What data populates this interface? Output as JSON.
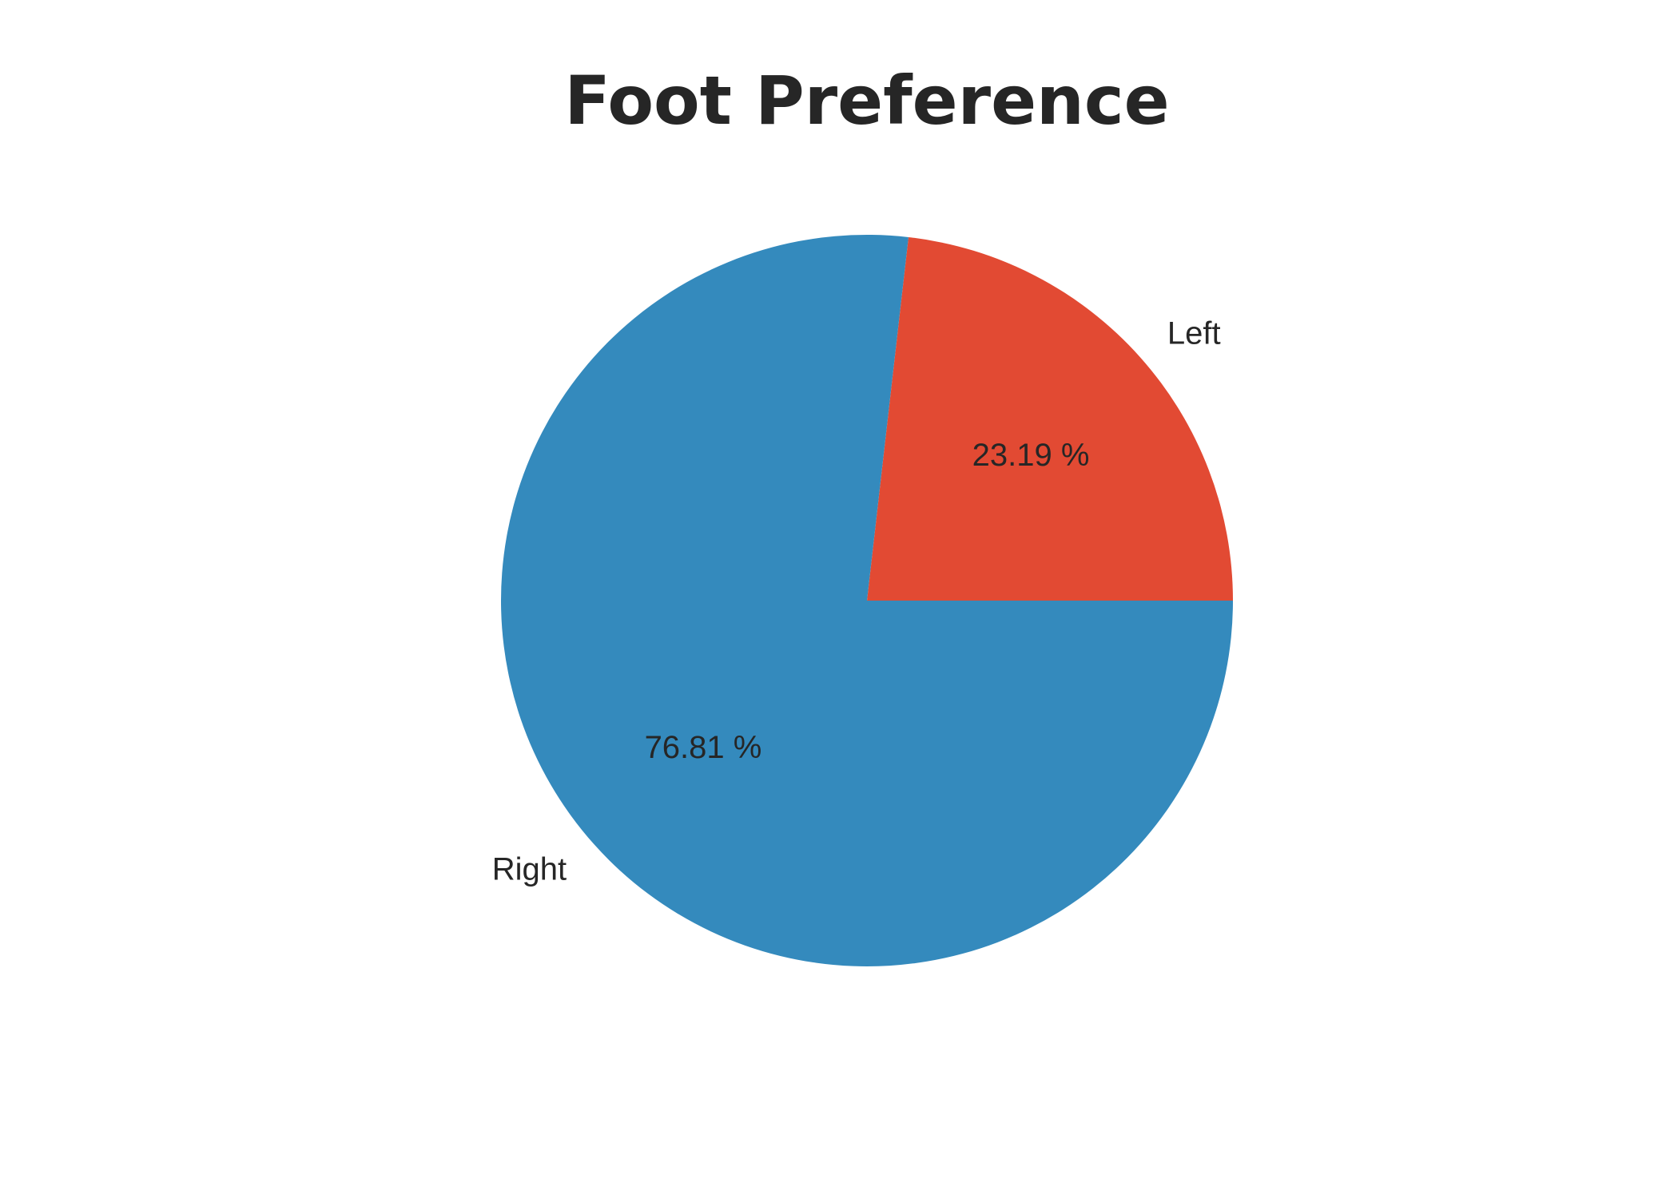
{
  "chart_data": {
    "type": "pie",
    "title": "Foot Preference",
    "start_angle_deg": 0,
    "direction": "counterclockwise",
    "slices": [
      {
        "label": "Left",
        "value": 23.19,
        "pct_label": "23.19 %",
        "color": "#E24A33"
      },
      {
        "label": "Right",
        "value": 76.81,
        "pct_label": "76.81 %",
        "color": "#348ABD"
      }
    ]
  }
}
